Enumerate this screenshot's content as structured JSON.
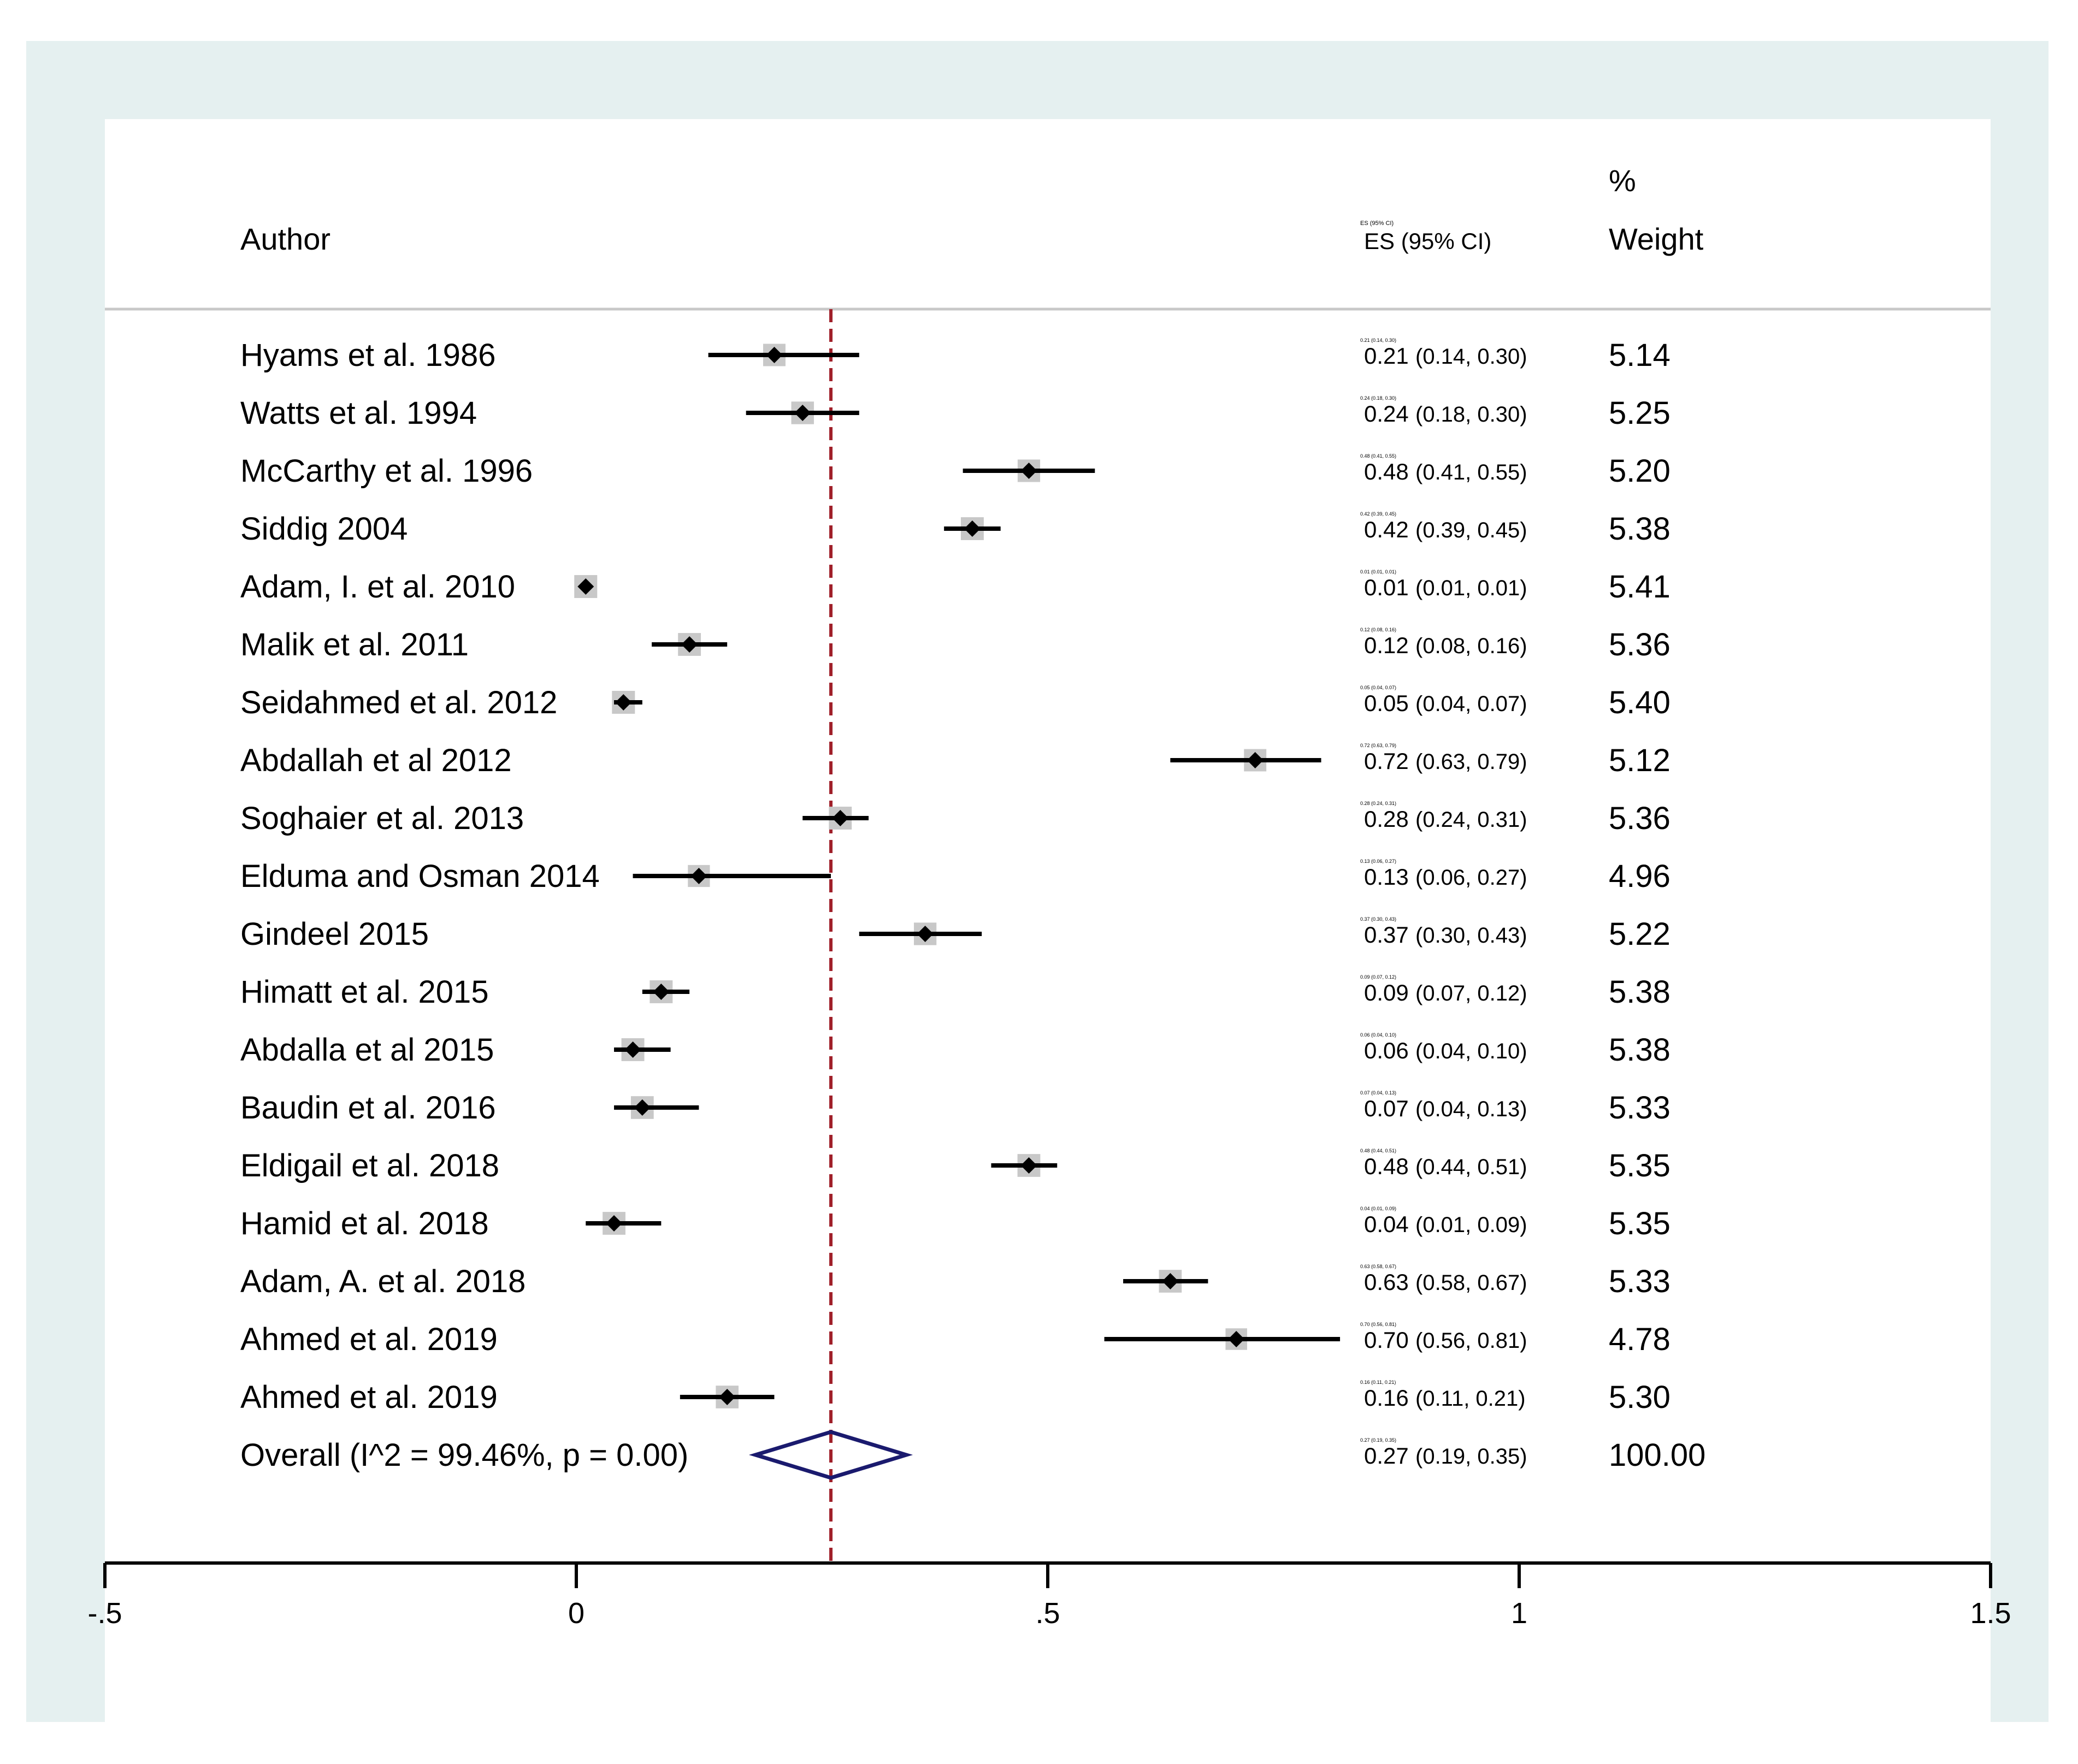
{
  "chart_data": {
    "type": "forest",
    "header": {
      "author": "Author",
      "es_small": "ES (95% CI)",
      "es": "ES (95% CI)",
      "weight_pct": "%",
      "weight": "Weight"
    },
    "studies": [
      {
        "author": "Hyams et al. 1986",
        "es": 0.21,
        "lo": 0.14,
        "hi": 0.3,
        "es_text": "0.21",
        "ci_text": "(0.14, 0.30)",
        "small": "0.21 (0.14, 0.30)",
        "weight": "5.14"
      },
      {
        "author": "Watts et al. 1994",
        "es": 0.24,
        "lo": 0.18,
        "hi": 0.3,
        "es_text": "0.24",
        "ci_text": "(0.18, 0.30)",
        "small": "0.24 (0.18, 0.30)",
        "weight": "5.25"
      },
      {
        "author": "McCarthy et al. 1996",
        "es": 0.48,
        "lo": 0.41,
        "hi": 0.55,
        "es_text": "0.48",
        "ci_text": "(0.41, 0.55)",
        "small": "0.48 (0.41, 0.55)",
        "weight": "5.20"
      },
      {
        "author": "Siddig 2004",
        "es": 0.42,
        "lo": 0.39,
        "hi": 0.45,
        "es_text": "0.42",
        "ci_text": "(0.39, 0.45)",
        "small": "0.42 (0.39, 0.45)",
        "weight": "5.38"
      },
      {
        "author": "Adam, I. et al. 2010",
        "es": 0.01,
        "lo": 0.01,
        "hi": 0.01,
        "es_text": "0.01",
        "ci_text": "(0.01, 0.01)",
        "small": "0.01 (0.01, 0.01)",
        "weight": "5.41"
      },
      {
        "author": "Malik et al. 2011",
        "es": 0.12,
        "lo": 0.08,
        "hi": 0.16,
        "es_text": "0.12",
        "ci_text": "(0.08, 0.16)",
        "small": "0.12 (0.08, 0.16)",
        "weight": "5.36"
      },
      {
        "author": "Seidahmed et al. 2012",
        "es": 0.05,
        "lo": 0.04,
        "hi": 0.07,
        "es_text": "0.05",
        "ci_text": "(0.04, 0.07)",
        "small": "0.05 (0.04, 0.07)",
        "weight": "5.40"
      },
      {
        "author": "Abdallah et al 2012",
        "es": 0.72,
        "lo": 0.63,
        "hi": 0.79,
        "es_text": "0.72",
        "ci_text": "(0.63, 0.79)",
        "small": "0.72 (0.63, 0.79)",
        "weight": "5.12"
      },
      {
        "author": "Soghaier et al. 2013",
        "es": 0.28,
        "lo": 0.24,
        "hi": 0.31,
        "es_text": "0.28",
        "ci_text": "(0.24, 0.31)",
        "small": "0.28 (0.24, 0.31)",
        "weight": "5.36"
      },
      {
        "author": "Elduma and Osman 2014",
        "es": 0.13,
        "lo": 0.06,
        "hi": 0.27,
        "es_text": "0.13",
        "ci_text": "(0.06, 0.27)",
        "small": "0.13 (0.06, 0.27)",
        "weight": "4.96"
      },
      {
        "author": "Gindeel 2015",
        "es": 0.37,
        "lo": 0.3,
        "hi": 0.43,
        "es_text": "0.37",
        "ci_text": "(0.30, 0.43)",
        "small": "0.37 (0.30, 0.43)",
        "weight": "5.22"
      },
      {
        "author": "Himatt et al. 2015",
        "es": 0.09,
        "lo": 0.07,
        "hi": 0.12,
        "es_text": "0.09",
        "ci_text": "(0.07, 0.12)",
        "small": "0.09 (0.07, 0.12)",
        "weight": "5.38"
      },
      {
        "author": "Abdalla et al 2015",
        "es": 0.06,
        "lo": 0.04,
        "hi": 0.1,
        "es_text": "0.06",
        "ci_text": "(0.04, 0.10)",
        "small": "0.06 (0.04, 0.10)",
        "weight": "5.38"
      },
      {
        "author": "Baudin et al. 2016",
        "es": 0.07,
        "lo": 0.04,
        "hi": 0.13,
        "es_text": "0.07",
        "ci_text": "(0.04, 0.13)",
        "small": "0.07 (0.04, 0.13)",
        "weight": "5.33"
      },
      {
        "author": "Eldigail et al. 2018",
        "es": 0.48,
        "lo": 0.44,
        "hi": 0.51,
        "es_text": "0.48",
        "ci_text": "(0.44, 0.51)",
        "small": "0.48 (0.44, 0.51)",
        "weight": "5.35"
      },
      {
        "author": "Hamid et al. 2018",
        "es": 0.04,
        "lo": 0.01,
        "hi": 0.09,
        "es_text": "0.04",
        "ci_text": "(0.01, 0.09)",
        "small": "0.04 (0.01, 0.09)",
        "weight": "5.35"
      },
      {
        "author": "Adam, A. et al. 2018",
        "es": 0.63,
        "lo": 0.58,
        "hi": 0.67,
        "es_text": "0.63",
        "ci_text": "(0.58, 0.67)",
        "small": "0.63 (0.58, 0.67)",
        "weight": "5.33"
      },
      {
        "author": "Ahmed et al. 2019",
        "es": 0.7,
        "lo": 0.56,
        "hi": 0.81,
        "es_text": "0.70",
        "ci_text": "(0.56, 0.81)",
        "small": "0.70 (0.56, 0.81)",
        "weight": "4.78"
      },
      {
        "author": "Ahmed et al. 2019",
        "es": 0.16,
        "lo": 0.11,
        "hi": 0.21,
        "es_text": "0.16",
        "ci_text": "(0.11, 0.21)",
        "small": "0.16 (0.11, 0.21)",
        "weight": "5.30"
      }
    ],
    "overall": {
      "author": "Overall  (I^2 = 99.46%, p = 0.00)",
      "es": 0.27,
      "lo": 0.19,
      "hi": 0.35,
      "es_text": "0.27",
      "ci_text": "(0.19, 0.35)",
      "small": "0.27 (0.19, 0.35)",
      "weight": "100.00"
    },
    "xlim": [
      -0.5,
      1.5
    ],
    "xticks": [
      -0.5,
      0,
      0.5,
      1,
      1.5
    ],
    "xtick_labels": [
      "-.5",
      "0",
      ".5",
      "1",
      "1.5"
    ],
    "colors": {
      "outer_bg": "#e5f0f0",
      "plot_bg": "#ffffff",
      "divider": "#c8c8c8",
      "weight_box": "#c8c8c8",
      "marker": "#000000",
      "ref_line": "#a0202a",
      "diamond": "#1a1a6e"
    }
  }
}
